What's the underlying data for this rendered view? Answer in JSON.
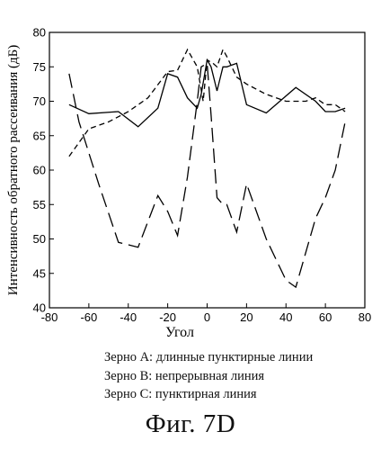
{
  "chart_data": {
    "type": "line",
    "title": "",
    "xlabel": "Угол",
    "ylabel": "Интенсивность обратного рассеивания (дБ)",
    "xlim": [
      -80,
      80
    ],
    "ylim": [
      40,
      80
    ],
    "xticks": [
      -80,
      -60,
      -40,
      -20,
      0,
      20,
      40,
      60,
      80
    ],
    "yticks": [
      40,
      45,
      50,
      55,
      60,
      65,
      70,
      75,
      80
    ],
    "xtick_labels": [
      "-80",
      "-60",
      "-40",
      "-20",
      "0",
      "20",
      "40",
      "60",
      "80"
    ],
    "ytick_labels": [
      "40",
      "45",
      "50",
      "55",
      "60",
      "65",
      "70",
      "75",
      "80"
    ],
    "grid": false,
    "series": [
      {
        "name": "Зерно A",
        "style": "long-dash",
        "x": [
          -70,
          -65,
          -55,
          -45,
          -35,
          -25,
          -20,
          -15,
          -10,
          -5,
          -3,
          0,
          2,
          5,
          8,
          10,
          15,
          20,
          30,
          40,
          45,
          50,
          55,
          60,
          65,
          70
        ],
        "y": [
          74,
          67,
          58,
          49.5,
          48.8,
          56.3,
          54,
          50.5,
          59,
          70,
          75,
          75.5,
          68,
          56,
          55,
          55,
          51,
          58,
          50,
          44,
          43,
          48,
          53,
          56,
          60,
          67
        ]
      },
      {
        "name": "Зерно B",
        "style": "solid",
        "x": [
          -70,
          -60,
          -45,
          -35,
          -25,
          -20,
          -15,
          -10,
          -5,
          -3,
          0,
          2,
          5,
          8,
          10,
          15,
          20,
          30,
          45,
          55,
          60,
          65,
          70
        ],
        "y": [
          69.5,
          68.2,
          68.5,
          66.3,
          69,
          74,
          73.5,
          70.5,
          69,
          71,
          76,
          75,
          71.5,
          75,
          75,
          75.5,
          69.5,
          68.3,
          72,
          70,
          68.5,
          68.5,
          69
        ]
      },
      {
        "name": "Зерно C",
        "style": "dashed",
        "x": [
          -70,
          -60,
          -50,
          -40,
          -30,
          -20,
          -15,
          -10,
          -5,
          -2,
          0,
          3,
          5,
          8,
          10,
          15,
          20,
          30,
          40,
          50,
          55,
          60,
          65,
          70
        ],
        "y": [
          62,
          66,
          67,
          68.5,
          70.5,
          74.3,
          74.5,
          77.5,
          75,
          70,
          76,
          75.5,
          75,
          77.5,
          76.5,
          73.5,
          72.5,
          71,
          70,
          70,
          70.5,
          69.5,
          69.5,
          68.5
        ]
      }
    ]
  },
  "legend_lines": [
    "Зерно A: длинные пунктирные линии",
    "Зерно B: непрерывная линия",
    "Зерно C: пунктирная линия"
  ],
  "caption": "Фиг. 7D"
}
